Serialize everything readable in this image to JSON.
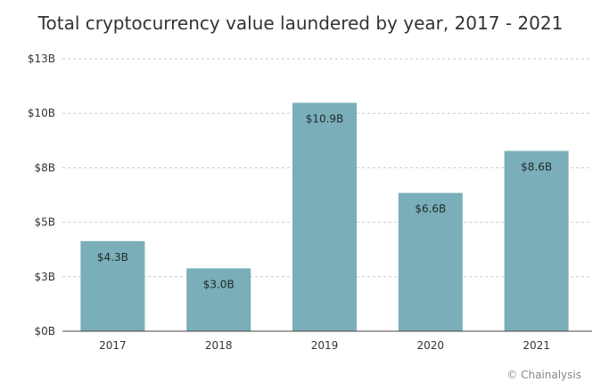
{
  "chart_data": {
    "type": "bar",
    "title": "Total cryptocurrency value laundered by year, 2017 - 2021",
    "categories": [
      "2017",
      "2018",
      "2019",
      "2020",
      "2021"
    ],
    "values": [
      4.3,
      3.0,
      10.9,
      6.6,
      8.6
    ],
    "data_labels": [
      "$4.3B",
      "$3.0B",
      "$10.9B",
      "$6.6B",
      "$8.6B"
    ],
    "yticks": [
      0,
      2.6,
      5.2,
      7.8,
      10.4,
      13
    ],
    "ytick_labels": [
      "$0B",
      "$3B",
      "$5B",
      "$8B",
      "$10B",
      "$13B"
    ],
    "ylim": [
      0,
      13
    ],
    "xlabel": "",
    "ylabel": "",
    "grid": "horizontal dashed",
    "bar_color": "#7aaeb8"
  },
  "credit": "© Chainalysis"
}
